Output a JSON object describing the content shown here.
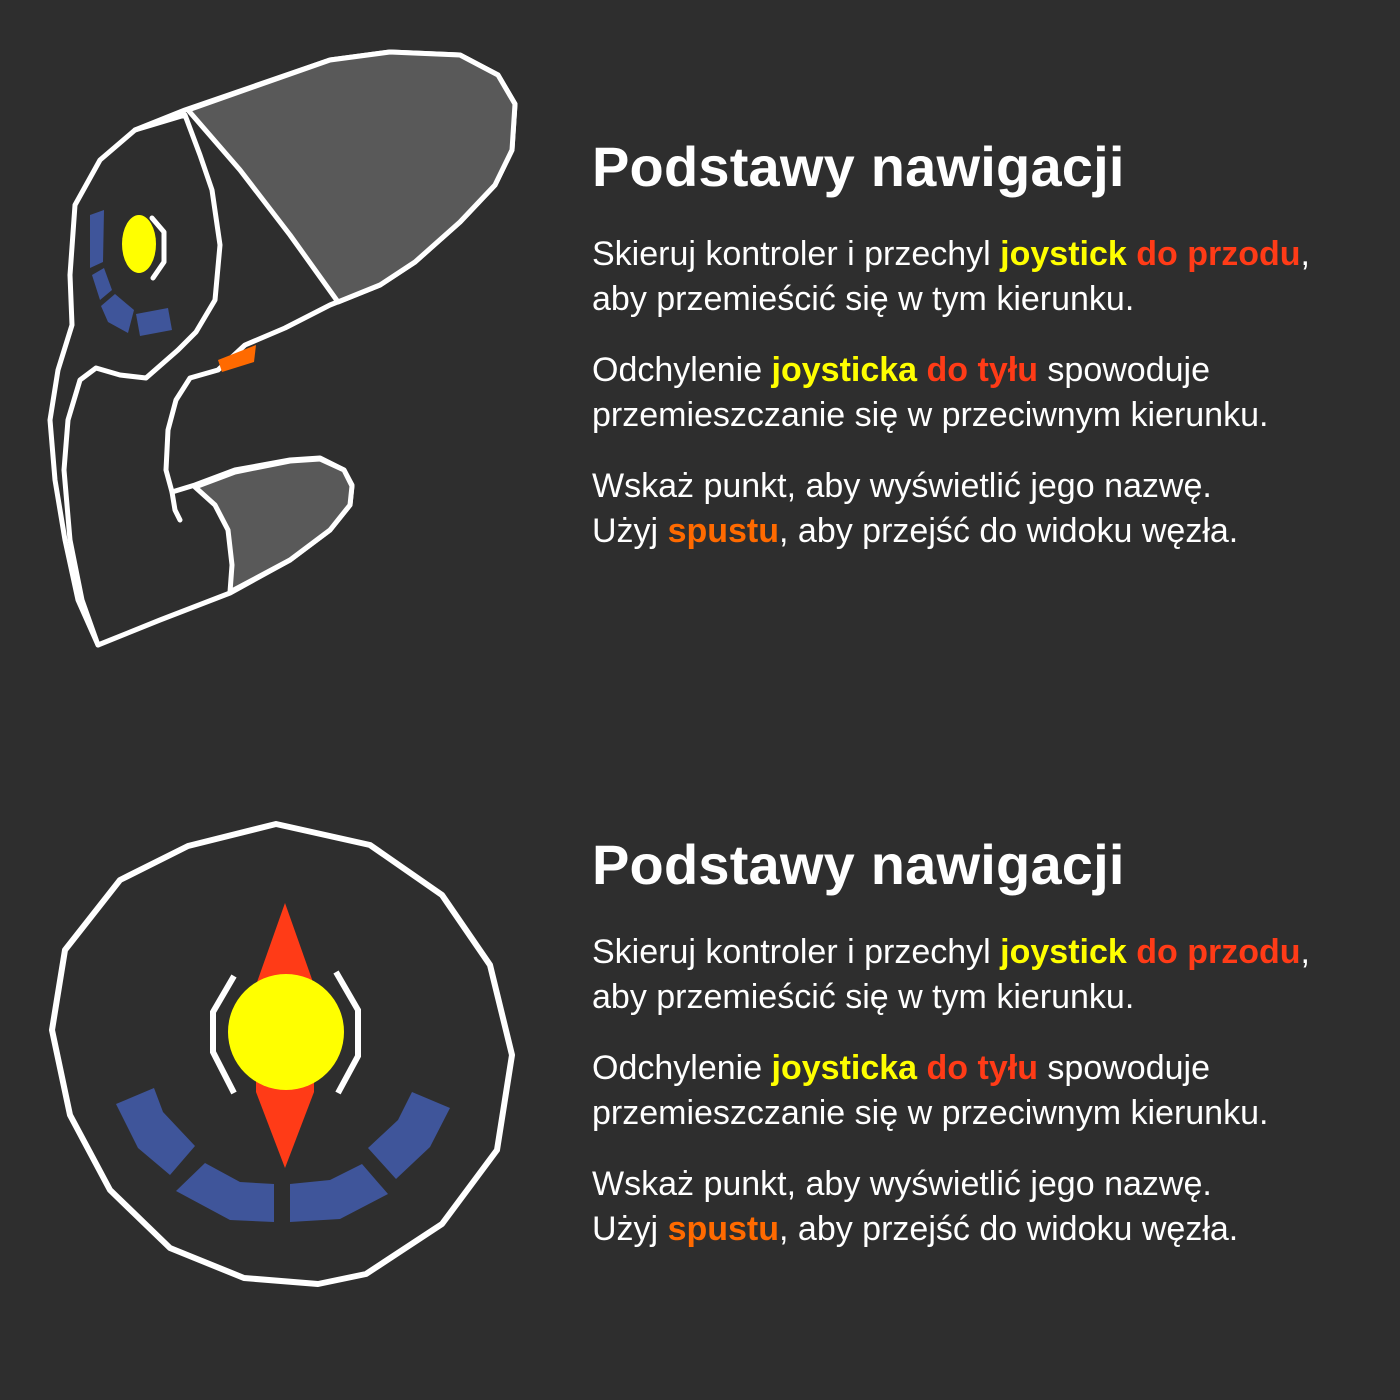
{
  "colors": {
    "background": "#2e2e2e",
    "text": "#ffffff",
    "joystick_highlight": "#ffff00",
    "direction_highlight": "#ff3b17",
    "trigger_highlight": "#ff6a00",
    "controller_gray": "#595959",
    "touchpad_blue": "#3f559a"
  },
  "icons": {
    "top": "vr-controller-side-view-icon",
    "bottom": "vr-controller-top-view-icon"
  },
  "panels": [
    {
      "title": "Podstawy nawigacji",
      "p1": {
        "pre": "Skieruj kontroler i przechyl ",
        "joystick": "joystick",
        "direction": "do przodu",
        "post": ", aby przemieścić się w tym kierunku."
      },
      "p2": {
        "pre": "Odchylenie ",
        "joystick": "joysticka",
        "direction": "do tyłu",
        "post": " spowoduje przemieszczanie się w przeciwnym kierunku."
      },
      "p3": {
        "line1": "Wskaż punkt, aby wyświetlić jego nazwę.",
        "pre": "Użyj ",
        "trigger": "spustu",
        "post": ", aby przejść do widoku węzła."
      }
    },
    {
      "title": "Podstawy nawigacji",
      "p1": {
        "pre": "Skieruj kontroler i przechyl ",
        "joystick": "joystick",
        "direction": "do przodu",
        "post": ", aby przemieścić się w tym kierunku."
      },
      "p2": {
        "pre": "Odchylenie ",
        "joystick": "joysticka",
        "direction": "do tyłu",
        "post": " spowoduje przemieszczanie się w przeciwnym kierunku."
      },
      "p3": {
        "line1": "Wskaż punkt, aby wyświetlić jego nazwę.",
        "pre": "Użyj ",
        "trigger": "spustu",
        "post": ", aby przejść do widoku węzła."
      }
    }
  ]
}
